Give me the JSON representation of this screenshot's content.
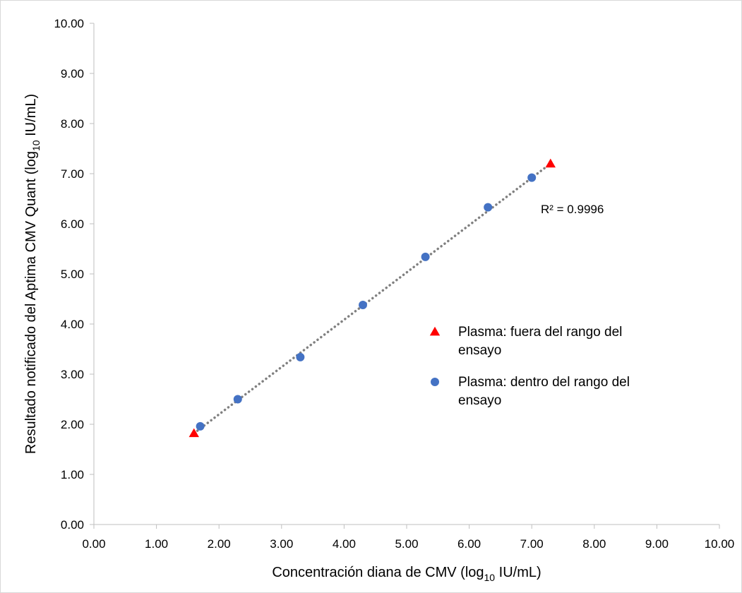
{
  "chart_data": {
    "type": "scatter",
    "x_axis": {
      "label_main": "Concentración diana de CMV (log",
      "label_sub": "10",
      "label_end": " IU/mL)",
      "range": [
        0,
        10
      ],
      "ticks": [
        "0.00",
        "1.00",
        "2.00",
        "3.00",
        "4.00",
        "5.00",
        "6.00",
        "7.00",
        "8.00",
        "9.00",
        "10.00"
      ]
    },
    "y_axis": {
      "label_main": "Resultado notificado del Aptima CMV Quant (log",
      "label_sub": "10",
      "label_end": " IU/mL)",
      "range": [
        0,
        10
      ],
      "ticks": [
        "0.00",
        "1.00",
        "2.00",
        "3.00",
        "4.00",
        "5.00",
        "6.00",
        "7.00",
        "8.00",
        "9.00",
        "10.00"
      ]
    },
    "series": [
      {
        "name": "Plasma: fuera del rango del ensayo",
        "name_lines": [
          "Plasma: fuera del rango del",
          "ensayo"
        ],
        "marker": "triangle",
        "color": "#ff0000",
        "points": [
          {
            "x": 1.6,
            "y": 1.82
          },
          {
            "x": 7.3,
            "y": 7.2
          }
        ]
      },
      {
        "name": "Plasma: dentro del rango del ensayo",
        "name_lines": [
          "Plasma: dentro del rango del",
          "ensayo"
        ],
        "marker": "circle",
        "color": "#4472c4",
        "points": [
          {
            "x": 1.7,
            "y": 1.96
          },
          {
            "x": 2.3,
            "y": 2.5
          },
          {
            "x": 3.3,
            "y": 3.34
          },
          {
            "x": 4.3,
            "y": 4.38
          },
          {
            "x": 5.3,
            "y": 5.34
          },
          {
            "x": 6.3,
            "y": 6.33
          },
          {
            "x": 7.0,
            "y": 6.92
          }
        ]
      }
    ],
    "trendline": {
      "style": "dotted",
      "color": "#808080",
      "from": {
        "x": 1.6,
        "y": 1.82
      },
      "to": {
        "x": 7.3,
        "y": 7.2
      },
      "label": "R² = 0.9996"
    },
    "legend_position": "right-center",
    "grid": false
  }
}
